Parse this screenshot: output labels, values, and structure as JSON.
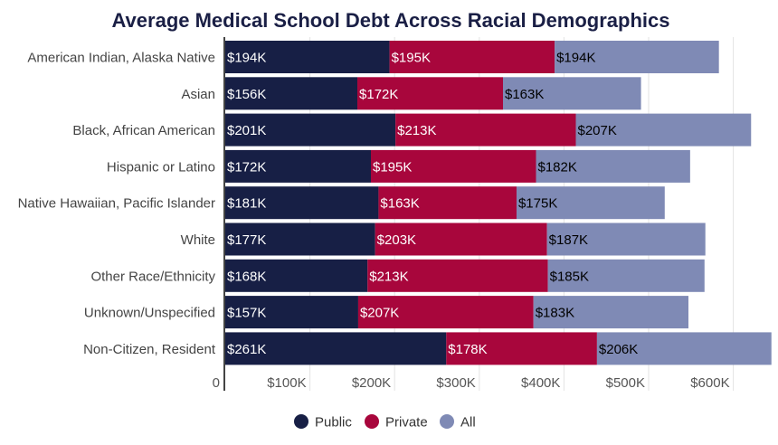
{
  "chart_data": {
    "type": "bar",
    "orientation": "horizontal",
    "stacked": true,
    "title": "Average Medical School Debt Across Racial Demographics",
    "xlabel": "",
    "ylabel": "",
    "xlim": [
      0,
      650
    ],
    "x_ticks": [
      {
        "value": 0,
        "label": "0"
      },
      {
        "value": 100,
        "label": "$100K"
      },
      {
        "value": 200,
        "label": "$200K"
      },
      {
        "value": 300,
        "label": "$300K"
      },
      {
        "value": 400,
        "label": "$400K"
      },
      {
        "value": 500,
        "label": "$500K"
      },
      {
        "value": 600,
        "label": "$600K"
      }
    ],
    "grid": true,
    "legend_position": "bottom",
    "categories": [
      "American Indian, Alaska Native",
      "Asian",
      "Black, African American",
      "Hispanic or Latino",
      "Native Hawaiian, Pacific Islander",
      "White",
      "Other Race/Ethnicity",
      "Unknown/Unspecified",
      "Non-Citizen, Resident"
    ],
    "series": [
      {
        "name": "Public",
        "color": "#171f45",
        "label_color": "#ffffff",
        "values": [
          194,
          156,
          201,
          172,
          181,
          177,
          168,
          157,
          261
        ]
      },
      {
        "name": "Private",
        "color": "#a8063c",
        "label_color": "#ffffff",
        "values": [
          195,
          172,
          213,
          195,
          163,
          203,
          213,
          207,
          178
        ]
      },
      {
        "name": "All",
        "color": "#7f8ab5",
        "label_color": "#000000",
        "values": [
          194,
          163,
          207,
          182,
          175,
          187,
          185,
          183,
          206
        ]
      }
    ],
    "value_label_format": "$%dK"
  }
}
